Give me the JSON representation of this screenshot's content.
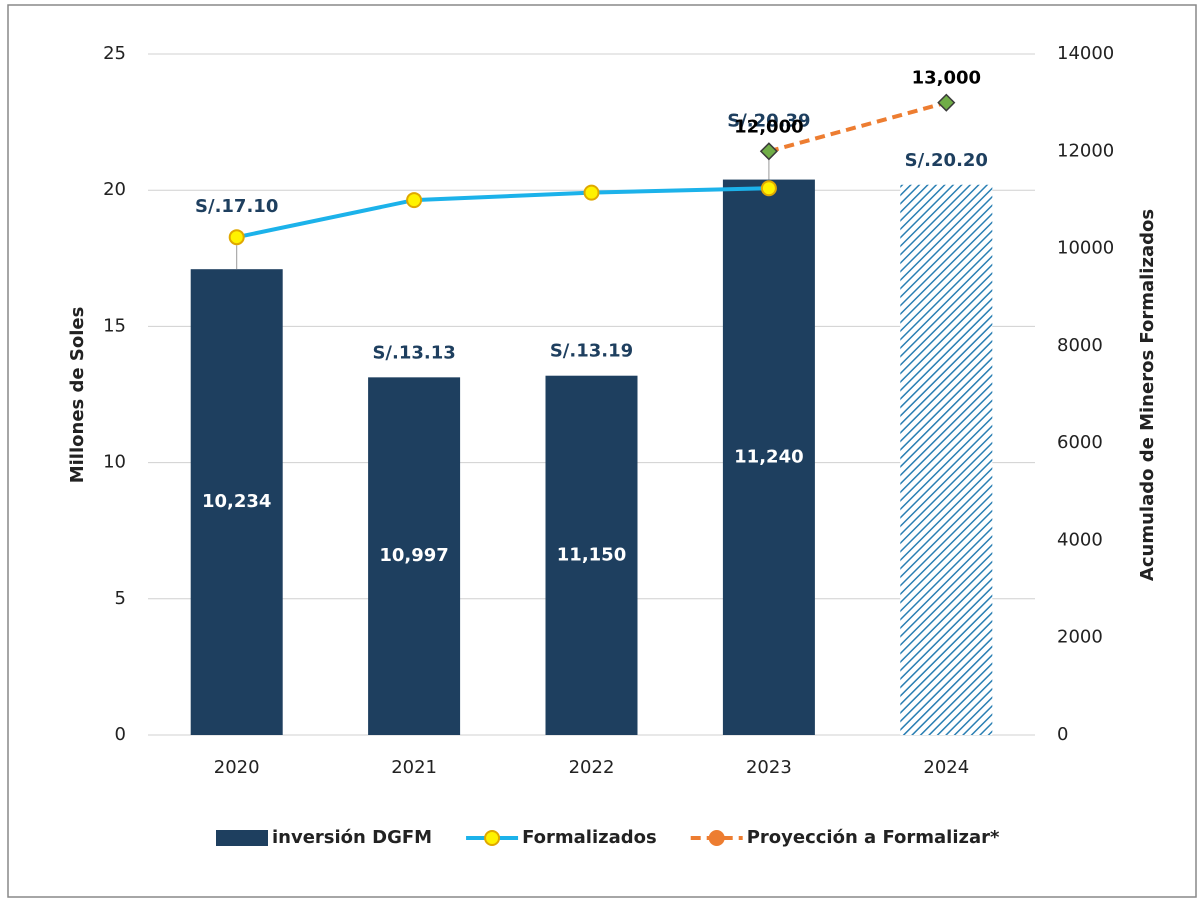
{
  "chart_data": {
    "type": "bar_line",
    "categories": [
      "2020",
      "2021",
      "2022",
      "2023",
      "2024"
    ],
    "ylabel": "Millones de Soles",
    "y2label": "Acumulado de Mineros Formalizados",
    "ylim": [
      0,
      25
    ],
    "yticks": [
      0,
      5,
      10,
      15,
      20,
      25
    ],
    "y2lim": [
      0,
      14000
    ],
    "y2ticks": [
      0,
      2000,
      4000,
      6000,
      8000,
      10000,
      12000,
      14000
    ],
    "grid": true,
    "legend": "bottom",
    "series": [
      {
        "name": "inversión DGFM",
        "type": "bar",
        "color": "#1e3f5f",
        "hatch_color": "#2a7fb3",
        "hatched": [
          false,
          false,
          false,
          false,
          true
        ],
        "values": [
          17.1,
          13.13,
          13.19,
          20.39,
          20.2
        ],
        "value_labels": [
          "S/.17.10",
          "S/.13.13",
          "S/.13.19",
          "S/.20.39",
          "S/.20.20"
        ]
      },
      {
        "name": "Formalizados",
        "type": "line",
        "axis": "y2",
        "color": "#1cb2ea",
        "marker_color": "#fff200",
        "values": [
          10234,
          10997,
          11150,
          11240,
          null
        ],
        "value_labels": [
          "10,234",
          "10,997",
          "11,150",
          "11,240",
          null
        ]
      },
      {
        "name": "Proyección a Formalizar*",
        "type": "line",
        "axis": "y2",
        "dashed": true,
        "color": "#ed7d31",
        "marker_color": "#70ad47",
        "values": [
          null,
          null,
          null,
          12000,
          13000
        ],
        "value_labels": [
          null,
          null,
          null,
          "12,000",
          "13,000"
        ]
      }
    ]
  }
}
